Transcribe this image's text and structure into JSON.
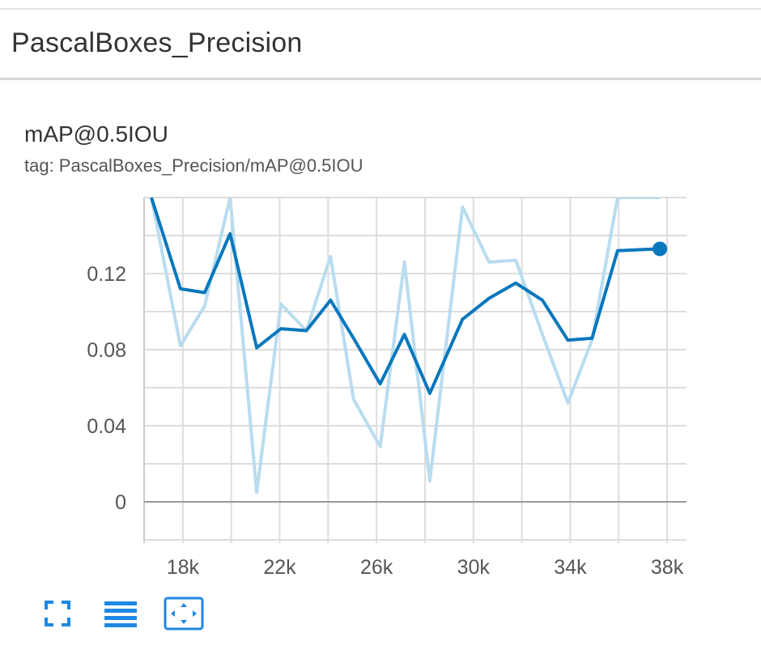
{
  "section": {
    "title": "PascalBoxes_Precision"
  },
  "card": {
    "title": "mAP@0.5IOU",
    "tag": "tag: PascalBoxes_Precision/mAP@0.5IOU"
  },
  "toolbar": {
    "buttons": [
      {
        "name": "fullscreen-icon"
      },
      {
        "name": "data-table-icon"
      },
      {
        "name": "fit-domain-icon"
      }
    ]
  },
  "colors": {
    "smoothed": "#0877bd",
    "raw": "#b9dcef",
    "grid": "#dddddd",
    "zero_line": "#999999",
    "icon": "#1e88e5"
  },
  "chart_data": {
    "type": "line",
    "title": "mAP@0.5IOU",
    "xlabel": "",
    "ylabel": "",
    "xlim": [
      16400,
      38800
    ],
    "ylim": [
      -0.02,
      0.16
    ],
    "x_ticks": [
      "18k",
      "22k",
      "26k",
      "30k",
      "34k",
      "38k"
    ],
    "y_ticks": [
      "0",
      "0.04",
      "0.08",
      "0.12"
    ],
    "grid": true,
    "series": [
      {
        "role": "smoothed",
        "x": [
          16700,
          17900,
          18900,
          19950,
          21050,
          22050,
          23100,
          24100,
          25050,
          26150,
          27150,
          28200,
          29550,
          30650,
          31750,
          32850,
          33900,
          34900,
          35950,
          37700
        ],
        "y": [
          0.16,
          0.112,
          0.11,
          0.141,
          0.081,
          0.091,
          0.09,
          0.106,
          0.086,
          0.062,
          0.088,
          0.057,
          0.096,
          0.107,
          0.115,
          0.106,
          0.085,
          0.086,
          0.132,
          0.133
        ]
      },
      {
        "role": "raw",
        "x": [
          16700,
          17900,
          18900,
          19950,
          21050,
          22050,
          23100,
          24100,
          25050,
          26150,
          27150,
          28200,
          29550,
          30650,
          31750,
          32850,
          33900,
          34900,
          35950,
          36900,
          37700
        ],
        "y": [
          0.16,
          0.082,
          0.103,
          0.16,
          0.005,
          0.104,
          0.09,
          0.129,
          0.054,
          0.029,
          0.126,
          0.011,
          0.155,
          0.126,
          0.127,
          0.088,
          0.052,
          0.085,
          0.16,
          0.16,
          0.16
        ]
      }
    ],
    "last_point": {
      "x": 37700,
      "y": 0.133
    }
  }
}
